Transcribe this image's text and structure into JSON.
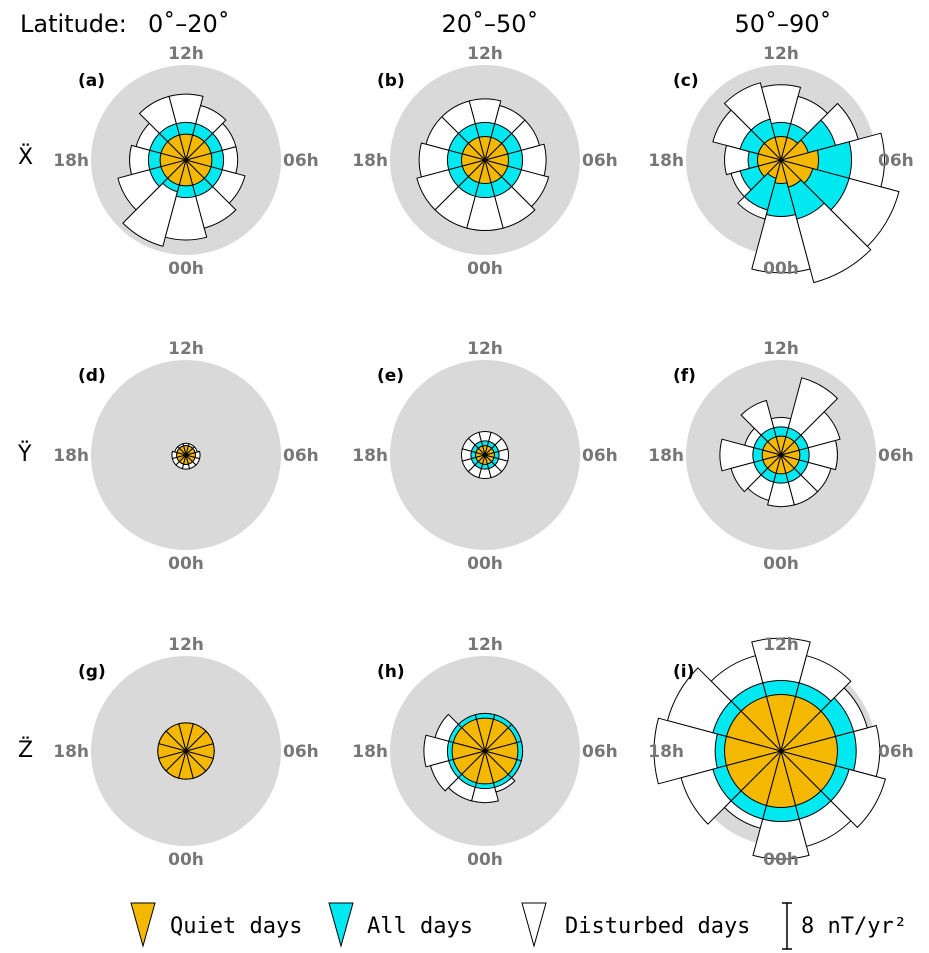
{
  "header": {
    "latitude_prefix": "Latitude:",
    "columns": [
      "0˚–20˚",
      "20˚–50˚",
      "50˚–90˚"
    ]
  },
  "rows": [
    "Ẍ",
    "Ÿ",
    "Z̈"
  ],
  "hour_labels": {
    "top": "12h",
    "left": "18h",
    "right": "06h",
    "bottom": "00h"
  },
  "legend": {
    "quiet": "Quiet days",
    "all": "All days",
    "disturbed": "Disturbed days",
    "scale": "8 nT/yr²"
  },
  "colors": {
    "quiet": "#F5B800",
    "all": "#00E8F0",
    "disturbed": "#FFFFFF",
    "background_disc": "#D9D9D9",
    "hour_text": "#777777"
  },
  "chart_data": [
    {
      "panel": "(a)",
      "component": "Ẍ",
      "latitude": "0˚–20˚",
      "type": "polar-bar",
      "unit": "nT/yr²",
      "bins": 12,
      "direction": "counterclockwise from 12h at top",
      "quiet": [
        5.5,
        5.5,
        5.5,
        5.5,
        5.5,
        5.5,
        5.5,
        5.5,
        5.5,
        5.5,
        5.5,
        5.5
      ],
      "all": [
        8,
        8,
        8,
        8,
        8,
        7,
        8,
        8,
        8,
        8,
        8,
        8
      ],
      "disturbed": [
        14,
        14,
        11,
        12,
        15,
        19,
        17,
        15,
        13,
        11,
        11,
        12
      ]
    },
    {
      "panel": "(b)",
      "component": "Ẍ",
      "latitude": "20˚–50˚",
      "type": "polar-bar",
      "unit": "nT/yr²",
      "bins": 12,
      "quiet": [
        5,
        5,
        5,
        5,
        5,
        5,
        5,
        5,
        5,
        5,
        5,
        5
      ],
      "all": [
        8,
        8,
        8,
        8,
        8,
        8,
        8,
        8,
        8,
        8,
        8,
        8
      ],
      "disturbed": [
        13,
        13,
        13,
        14,
        15,
        15,
        15,
        15,
        14,
        13,
        12,
        12
      ]
    },
    {
      "panel": "(c)",
      "component": "Ẍ",
      "latitude": "50˚–90˚",
      "type": "polar-bar",
      "unit": "nT/yr²",
      "bins": 12,
      "quiet": [
        5,
        5,
        5,
        5,
        5,
        4,
        5,
        6,
        7,
        8,
        6,
        5
      ],
      "all": [
        8,
        9,
        9,
        7,
        9,
        11,
        12,
        13,
        15,
        15,
        12,
        8
      ],
      "disturbed": [
        16,
        17,
        15,
        12,
        11,
        13,
        24,
        27,
        26,
        22,
        17,
        14
      ]
    },
    {
      "panel": "(d)",
      "component": "Ÿ",
      "latitude": "0˚–20˚",
      "type": "polar-bar",
      "unit": "nT/yr²",
      "bins": 12,
      "quiet": [
        2,
        2,
        2,
        2,
        2,
        2,
        2,
        2,
        2,
        2,
        2,
        2
      ],
      "all": [
        2,
        2,
        2,
        2,
        2,
        2,
        2,
        2,
        2,
        2,
        2,
        2
      ],
      "disturbed": [
        2.5,
        2.5,
        2.5,
        3,
        3,
        3,
        3,
        3,
        3,
        3,
        2.5,
        2.5
      ]
    },
    {
      "panel": "(e)",
      "component": "Ÿ",
      "latitude": "20˚–50˚",
      "type": "polar-bar",
      "unit": "nT/yr²",
      "bins": 12,
      "quiet": [
        2,
        2,
        2,
        2,
        2,
        2,
        2,
        2,
        2,
        2,
        2,
        2
      ],
      "all": [
        3,
        3,
        3,
        3,
        3,
        3,
        3,
        3,
        3,
        3,
        3,
        3
      ],
      "disturbed": [
        5,
        5,
        5,
        5,
        5,
        5,
        5,
        5,
        5,
        5,
        5,
        5
      ]
    },
    {
      "panel": "(f)",
      "component": "Ÿ",
      "latitude": "50˚–90˚",
      "type": "polar-bar",
      "unit": "nT/yr²",
      "bins": 12,
      "quiet": [
        4,
        4,
        4,
        4,
        4,
        4,
        4,
        4,
        4,
        4,
        4,
        4
      ],
      "all": [
        6,
        6,
        6,
        6,
        6,
        6,
        6,
        6,
        6,
        6,
        6,
        6
      ],
      "disturbed": [
        8,
        12,
        8,
        13,
        11,
        10,
        11,
        11,
        11,
        12,
        13,
        17
      ]
    },
    {
      "panel": "(g)",
      "component": "Z̈",
      "latitude": "0˚–20˚",
      "type": "polar-bar",
      "unit": "nT/yr²",
      "bins": 12,
      "quiet": [
        6,
        6,
        6,
        6,
        6,
        6,
        6,
        6,
        6,
        6,
        6,
        6
      ],
      "all": [
        6,
        6,
        6,
        6,
        6,
        6,
        6,
        6,
        6,
        6,
        6,
        6
      ],
      "disturbed": [
        6,
        6,
        6,
        6,
        6,
        6,
        6,
        6,
        6,
        6,
        6,
        6
      ]
    },
    {
      "panel": "(h)",
      "component": "Z̈",
      "latitude": "20˚–50˚",
      "type": "polar-bar",
      "unit": "nT/yr²",
      "bins": 12,
      "quiet": [
        7,
        7,
        7,
        7,
        7,
        7,
        7,
        7,
        7,
        7,
        7,
        7
      ],
      "all": [
        8,
        8,
        8,
        8,
        8,
        8,
        8,
        8,
        8,
        8,
        8,
        8
      ],
      "disturbed": [
        8,
        8,
        11,
        13,
        12,
        11,
        11,
        9,
        8,
        8,
        8,
        8
      ]
    },
    {
      "panel": "(i)",
      "component": "Z̈",
      "latitude": "50˚–90˚",
      "type": "polar-bar",
      "unit": "nT/yr²",
      "bins": 12,
      "quiet": [
        12,
        12,
        12,
        12,
        12,
        12,
        12,
        12,
        12,
        12,
        12,
        12
      ],
      "all": [
        15,
        15,
        15,
        14,
        15,
        15,
        15,
        15,
        15,
        16,
        16,
        15
      ],
      "disturbed": [
        24,
        21,
        25,
        27,
        22,
        17,
        23,
        21,
        23,
        21,
        19,
        21
      ]
    }
  ]
}
